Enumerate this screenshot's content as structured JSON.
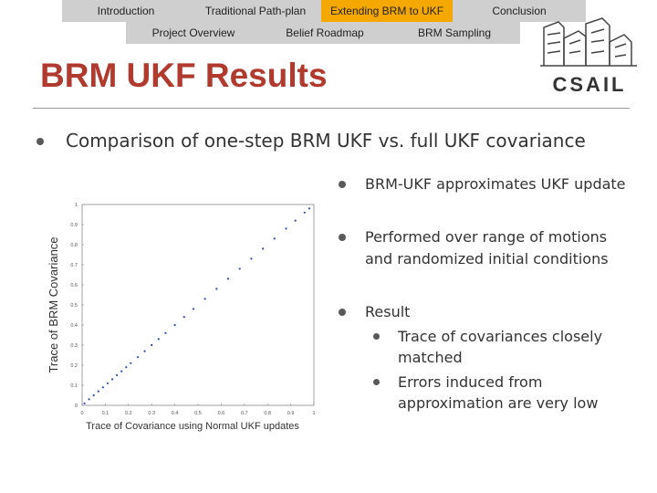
{
  "nav": {
    "top": [
      "Introduction",
      "Traditional Path-plan",
      "Extending BRM to UKF",
      "Conclusion"
    ],
    "sub": [
      "Project Overview",
      "Belief Roadmap",
      "BRM Sampling"
    ],
    "active_top": 2
  },
  "logo": {
    "text": "CSAIL"
  },
  "slide": {
    "title": "BRM UKF Results",
    "main_point": "Comparison of one-step BRM UKF vs. full UKF covariance",
    "right_points": [
      "BRM-UKF approximates UKF update",
      "Performed over range of motions and randomized initial conditions",
      "Result"
    ],
    "result_points": [
      "Trace of covariances closely matched",
      "Errors induced from approximation are very low"
    ]
  },
  "colors": {
    "title": "#b03a2e",
    "nav_active": "#f5a800",
    "nav_bg": "#cfcfcf",
    "points": "#2b4fa8"
  },
  "chart_data": {
    "type": "scatter",
    "title": "",
    "xlabel": "Trace of Covariance using Normal UKF updates",
    "ylabel": "Trace of BRM Covariance",
    "xlim": [
      0,
      1
    ],
    "ylim": [
      0,
      1
    ],
    "xticks": [
      "0",
      "0.1",
      "0.2",
      "0.3",
      "0.4",
      "0.5",
      "0.6",
      "0.7",
      "0.8",
      "0.9",
      "1"
    ],
    "yticks": [
      "0",
      "0.1",
      "0.2",
      "0.3",
      "0.4",
      "0.5",
      "0.6",
      "0.7",
      "0.8",
      "0.9",
      "1"
    ],
    "x": [
      0.01,
      0.03,
      0.05,
      0.07,
      0.09,
      0.11,
      0.13,
      0.15,
      0.17,
      0.19,
      0.21,
      0.24,
      0.27,
      0.3,
      0.33,
      0.36,
      0.4,
      0.44,
      0.48,
      0.53,
      0.58,
      0.63,
      0.68,
      0.73,
      0.78,
      0.83,
      0.88,
      0.92,
      0.96,
      0.98
    ],
    "y": [
      0.01,
      0.03,
      0.05,
      0.07,
      0.09,
      0.11,
      0.13,
      0.15,
      0.17,
      0.19,
      0.21,
      0.24,
      0.27,
      0.3,
      0.33,
      0.36,
      0.4,
      0.44,
      0.48,
      0.53,
      0.58,
      0.63,
      0.68,
      0.73,
      0.78,
      0.83,
      0.88,
      0.92,
      0.96,
      0.98
    ],
    "grid": false,
    "legend": "none"
  }
}
